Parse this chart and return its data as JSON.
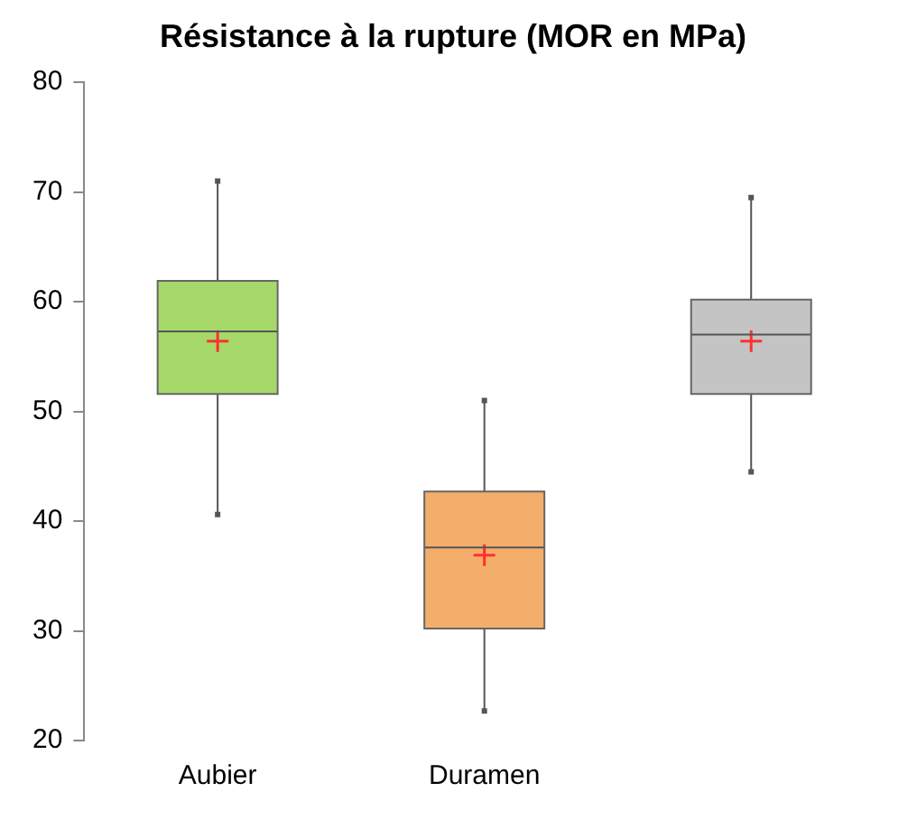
{
  "chart_data": {
    "type": "box",
    "title": "Résistance à la rupture (MOR en MPa)",
    "categories": [
      "Aubier",
      "Duramen",
      null
    ],
    "boxes": [
      {
        "low": 40.6,
        "q1": 51.6,
        "median": 57.3,
        "q3": 61.9,
        "high": 71.0,
        "mean": 56.4
      },
      {
        "low": 22.7,
        "q1": 30.2,
        "median": 37.6,
        "q3": 42.7,
        "high": 51.0,
        "mean": 36.9
      },
      {
        "low": 44.5,
        "q1": 51.6,
        "median": 57.0,
        "q3": 60.2,
        "high": 69.5,
        "mean": 56.4
      }
    ],
    "colors": [
      "#a6d96a",
      "#f4ae6b",
      "#c4c4c4"
    ],
    "ylim": [
      20,
      80
    ],
    "yticks": [
      20,
      30,
      40,
      50,
      60,
      70,
      80
    ],
    "grid": false,
    "legend": false
  }
}
